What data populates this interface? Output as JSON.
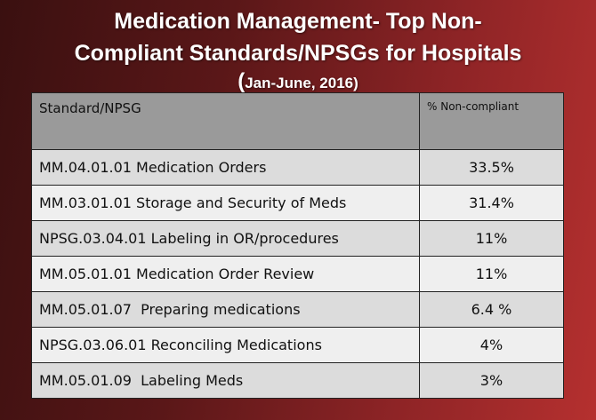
{
  "title": {
    "line1": "Medication Management- Top Non-",
    "line2": "Compliant Standards/NPSGs for Hospitals"
  },
  "subtitle": {
    "open": "(",
    "text": "Jan-June, 2016)"
  },
  "table": {
    "headers": [
      "Standard/NPSG",
      "% Non-compliant"
    ],
    "rows": [
      {
        "standard": "MM.04.01.01 Medication Orders",
        "percent": "33.5%"
      },
      {
        "standard": "MM.03.01.01 Storage and Security of Meds",
        "percent": "31.4%"
      },
      {
        "standard": "NPSG.03.04.01 Labeling in OR/procedures",
        "percent": "11%"
      },
      {
        "standard": "MM.05.01.01 Medication Order Review",
        "percent": "11%"
      },
      {
        "standard": "MM.05.01.07  Preparing medications",
        "percent": "6.4 %"
      },
      {
        "standard": "NPSG.03.06.01 Reconciling Medications",
        "percent": "4%"
      },
      {
        "standard": "MM.05.01.09  Labeling Meds",
        "percent": "3%"
      }
    ]
  }
}
